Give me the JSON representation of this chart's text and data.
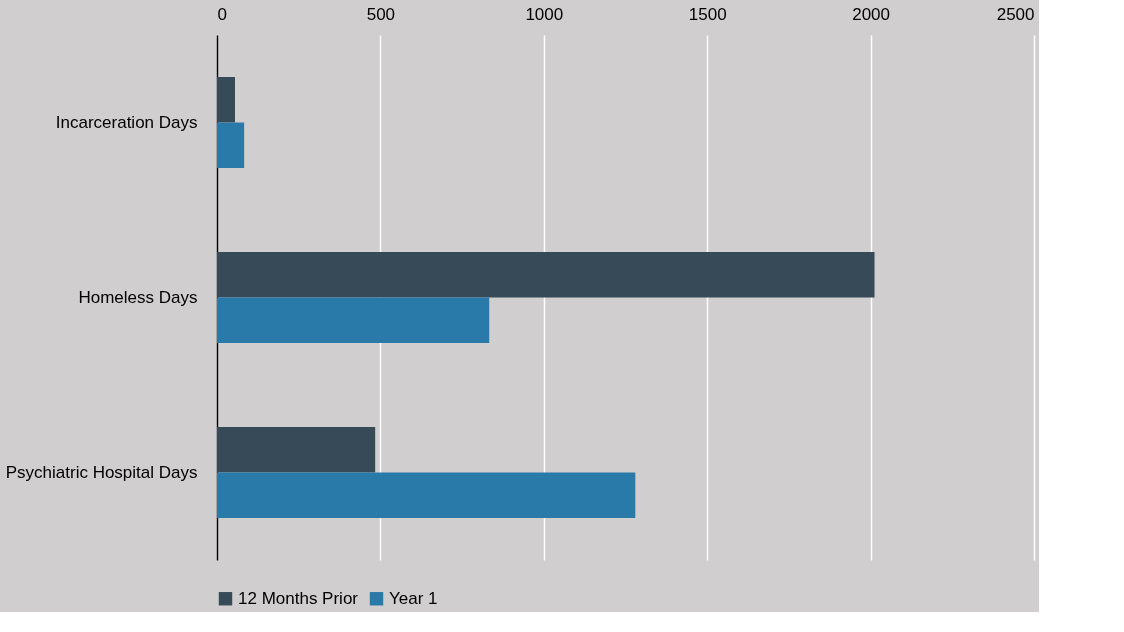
{
  "chart_data": {
    "type": "bar",
    "orientation": "horizontal",
    "categories": [
      "Incarceration Days",
      "Homeless Days",
      "Psychiatric Hospital Days"
    ],
    "series": [
      {
        "name": "12 Months Prior",
        "color": "#374a57",
        "values": [
          55,
          2012,
          484
        ]
      },
      {
        "name": "Year 1",
        "color": "#2a7aa9",
        "values": [
          83,
          833,
          1280
        ]
      }
    ],
    "xlim": [
      0,
      2500
    ],
    "xticks": [
      0,
      500,
      1000,
      1500,
      2000,
      2500
    ],
    "grid": "x",
    "legend": "bottom"
  }
}
